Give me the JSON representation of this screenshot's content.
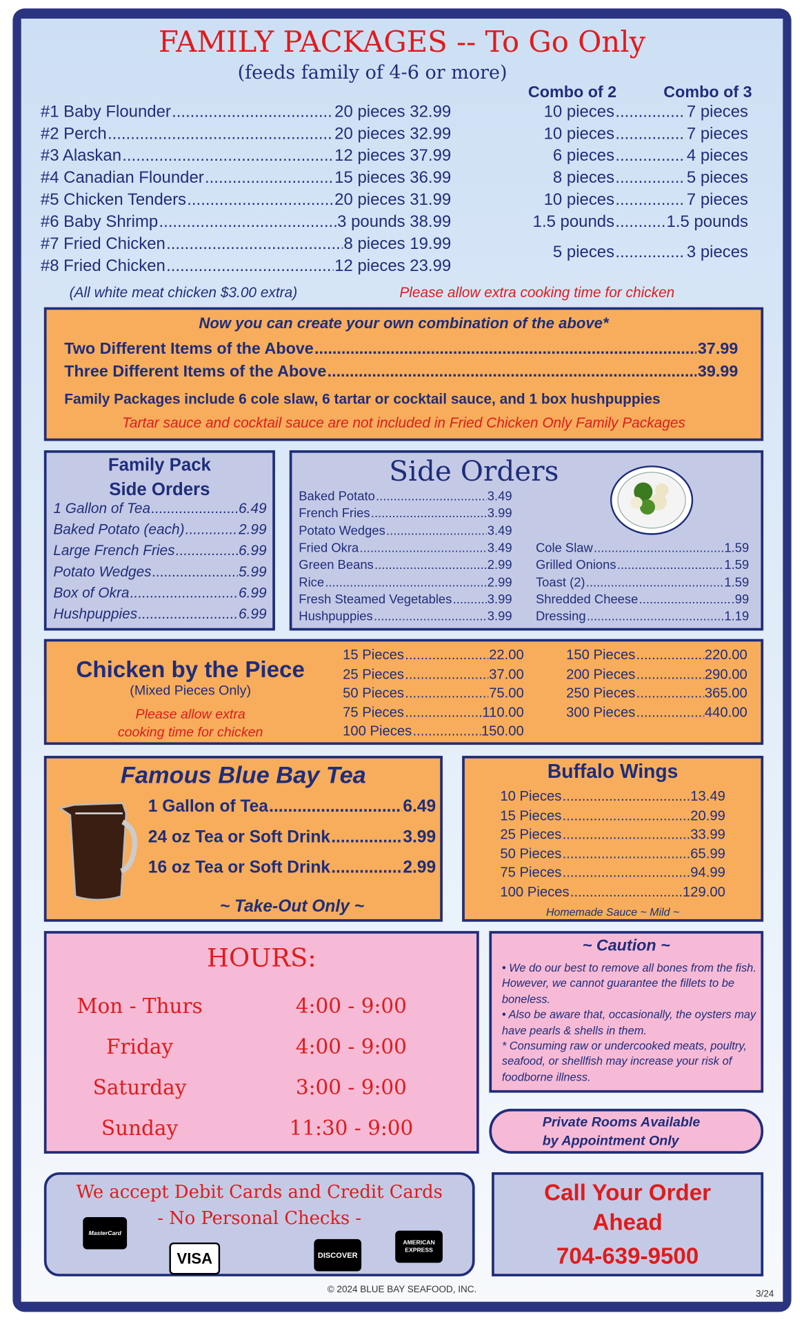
{
  "header": {
    "title": "FAMILY PACKAGES -- To Go Only",
    "subtitle": "(feeds family of 4-6 or more)",
    "combo2_label": "Combo of 2",
    "combo3_label": "Combo of 3"
  },
  "packages": [
    {
      "name": "#1 Baby Flounder",
      "qty": "20 pieces",
      "price": "32.99",
      "combo2": "10 pieces",
      "combo3": "7 pieces"
    },
    {
      "name": "#2 Perch",
      "qty": "20 pieces",
      "price": "32.99",
      "combo2": "10 pieces",
      "combo3": "7 pieces"
    },
    {
      "name": "#3 Alaskan",
      "qty": "12 pieces",
      "price": "37.99",
      "combo2": "6 pieces",
      "combo3": "4 pieces"
    },
    {
      "name": "#4 Canadian Flounder",
      "qty": "15 pieces",
      "price": "36.99",
      "combo2": "8 pieces",
      "combo3": "5 pieces"
    },
    {
      "name": "#5 Chicken Tenders",
      "qty": "20 pieces",
      "price": "31.99",
      "combo2": "10 pieces",
      "combo3": "7 pieces"
    },
    {
      "name": "#6 Baby Shrimp",
      "qty": "3 pounds",
      "price": "38.99",
      "combo2": "1.5 pounds",
      "combo3": "1.5 pounds"
    },
    {
      "name": "#7 Fried Chicken",
      "qty": "8 pieces",
      "price": "19.99"
    },
    {
      "name": "#8 Fried Chicken",
      "qty": "12 pieces",
      "price": "23.99"
    }
  ],
  "chicken_combo": {
    "combo2": "5 pieces",
    "combo3": "3 pieces"
  },
  "notes": {
    "white_meat": "(All white meat chicken $3.00 extra)",
    "cook_time": "Please allow extra cooking time for chicken"
  },
  "combo_box": {
    "heading": "Now you can create your own combination of the above*",
    "items": [
      {
        "name": "Two Different Items of the Above",
        "price": "37.99"
      },
      {
        "name": "Three Different Items of the Above",
        "price": "39.99"
      }
    ],
    "includes": "Family Packages include 6 cole slaw, 6 tartar or cocktail sauce, and 1 box hushpuppies",
    "exclusion": "Tartar sauce and cocktail sauce are not included in Fried Chicken Only Family Packages"
  },
  "family_sides": {
    "title_line1": "Family Pack",
    "title_line2": "Side Orders",
    "items": [
      {
        "name": "1 Gallon of Tea",
        "price": "6.49"
      },
      {
        "name": "Baked Potato (each)",
        "price": "2.99"
      },
      {
        "name": "Large French Fries",
        "price": "6.99"
      },
      {
        "name": "Potato Wedges",
        "price": "5.99"
      },
      {
        "name": "Box of Okra",
        "price": "6.99"
      },
      {
        "name": "Hushpuppies",
        "price": "6.99"
      }
    ]
  },
  "side_orders": {
    "title": "Side Orders",
    "left": [
      {
        "name": "Baked Potato",
        "price": "3.49"
      },
      {
        "name": "French Fries",
        "price": "3.99"
      },
      {
        "name": "Potato Wedges",
        "price": "3.49"
      },
      {
        "name": "Fried Okra",
        "price": "3.49"
      },
      {
        "name": "Green Beans",
        "price": "2.99"
      },
      {
        "name": "Rice",
        "price": "2.99"
      },
      {
        "name": "Fresh Steamed Vegetables",
        "price": "3.99"
      },
      {
        "name": "Hushpuppies",
        "price": "3.99"
      }
    ],
    "right": [
      {
        "name": "Cole Slaw",
        "price": "1.59"
      },
      {
        "name": "Grilled Onions",
        "price": "1.59"
      },
      {
        "name": "Toast (2)",
        "price": "1.59"
      },
      {
        "name": "Shredded Cheese",
        "price": ".99"
      },
      {
        "name": "Dressing",
        "price": "1.19"
      }
    ]
  },
  "chicken_piece": {
    "title": "Chicken by the Piece",
    "subtitle": "(Mixed Pieces Only)",
    "note_line1": "Please allow extra",
    "note_line2": "cooking time for chicken",
    "left": [
      {
        "name": "15 Pieces",
        "price": "22.00"
      },
      {
        "name": "25 Pieces",
        "price": "37.00"
      },
      {
        "name": "50 Pieces",
        "price": "75.00"
      },
      {
        "name": "75 Pieces",
        "price": "110.00"
      },
      {
        "name": "100 Pieces",
        "price": "150.00"
      }
    ],
    "right": [
      {
        "name": "150 Pieces",
        "price": "220.00"
      },
      {
        "name": "200 Pieces",
        "price": "290.00"
      },
      {
        "name": "250 Pieces",
        "price": "365.00"
      },
      {
        "name": "300 Pieces",
        "price": "440.00"
      }
    ]
  },
  "tea": {
    "title": "Famous Blue Bay Tea",
    "items": [
      {
        "name": "1 Gallon of Tea",
        "price": "6.49"
      },
      {
        "name": "24 oz Tea or Soft Drink",
        "price": "3.99"
      },
      {
        "name": "16 oz Tea or Soft Drink",
        "price": "2.99"
      }
    ],
    "footer": "~ Take-Out Only ~"
  },
  "wings": {
    "title": "Buffalo Wings",
    "items": [
      {
        "name": "10 Pieces",
        "price": "13.49"
      },
      {
        "name": "15 Pieces",
        "price": "20.99"
      },
      {
        "name": "25 Pieces",
        "price": "33.99"
      },
      {
        "name": "50 Pieces",
        "price": "65.99"
      },
      {
        "name": "75 Pieces",
        "price": "94.99"
      },
      {
        "name": "100 Pieces",
        "price": "129.00"
      }
    ],
    "footer": "Homemade Sauce ~ Mild ~"
  },
  "hours": {
    "title": "HOURS:",
    "rows": [
      {
        "day": "Mon - Thurs",
        "time": "4:00 - 9:00"
      },
      {
        "day": "Friday",
        "time": "4:00 - 9:00"
      },
      {
        "day": "Saturday",
        "time": "3:00 - 9:00"
      },
      {
        "day": "Sunday",
        "time": "11:30 - 9:00"
      }
    ]
  },
  "caution": {
    "title": "~ Caution ~",
    "text": "• We do our best to remove all bones from the fish.  However, we cannot guarantee the fillets to be boneless.\n• Also be aware that, occasionally, the oysters may have pearls & shells in them.\n* Consuming raw or undercooked meats, poultry, seafood, or shellfish may increase your risk of foodborne illness."
  },
  "private_rooms": {
    "line1": "Private Rooms Available",
    "line2": "by Appointment Only"
  },
  "payment": {
    "line1": "We accept Debit Cards and Credit Cards",
    "line2": "- No Personal Checks -",
    "cards": {
      "mastercard": "MasterCard",
      "visa": "VISA",
      "discover": "DISCOVER",
      "amex_line1": "AMERICAN",
      "amex_line2": "EXPRESS"
    }
  },
  "call": {
    "line1": "Call Your Order",
    "line2": "Ahead",
    "phone": "704-639-9500"
  },
  "footer": {
    "copyright": "© 2024 BLUE BAY SEAFOOD, INC.",
    "version": "3/24"
  },
  "colors": {
    "navy": "#1f2d7a",
    "red": "#e01b1b",
    "orange": "#f7ad5c",
    "lavender": "#c4cae6",
    "pink": "#f6bad6"
  }
}
